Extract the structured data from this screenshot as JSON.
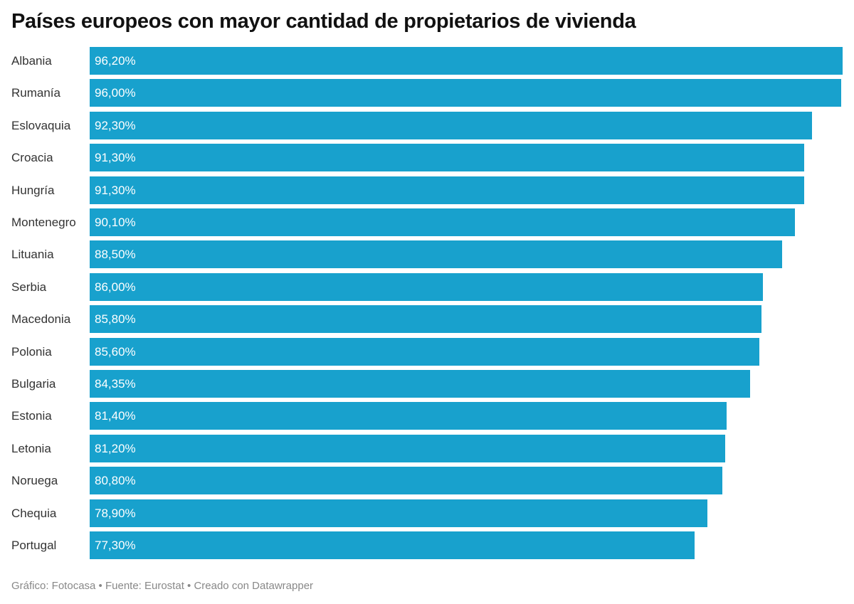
{
  "chart_data": {
    "type": "bar",
    "orientation": "horizontal",
    "title": "Países europeos con mayor cantidad de propietarios de vivienda",
    "categories": [
      "Albania",
      "Rumanía",
      "Eslovaquia",
      "Croacia",
      "Hungría",
      "Montenegro",
      "Lituania",
      "Serbia",
      "Macedonia",
      "Polonia",
      "Bulgaria",
      "Estonia",
      "Letonia",
      "Noruega",
      "Chequia",
      "Portugal"
    ],
    "values": [
      96.2,
      96.0,
      92.3,
      91.3,
      91.3,
      90.1,
      88.5,
      86.0,
      85.8,
      85.6,
      84.35,
      81.4,
      81.2,
      80.8,
      78.9,
      77.3
    ],
    "value_labels": [
      "96,20%",
      "96,00%",
      "92,30%",
      "91,30%",
      "91,30%",
      "90,10%",
      "88,50%",
      "86,00%",
      "85,80%",
      "85,60%",
      "84,35%",
      "81,40%",
      "81,20%",
      "80,80%",
      "78,90%",
      "77,30%"
    ],
    "xlim": [
      0,
      96.2
    ],
    "grid": false,
    "bar_color": "#18a1cd"
  },
  "footer": "Gráfico: Fotocasa • Fuente: Eurostat • Creado con Datawrapper"
}
